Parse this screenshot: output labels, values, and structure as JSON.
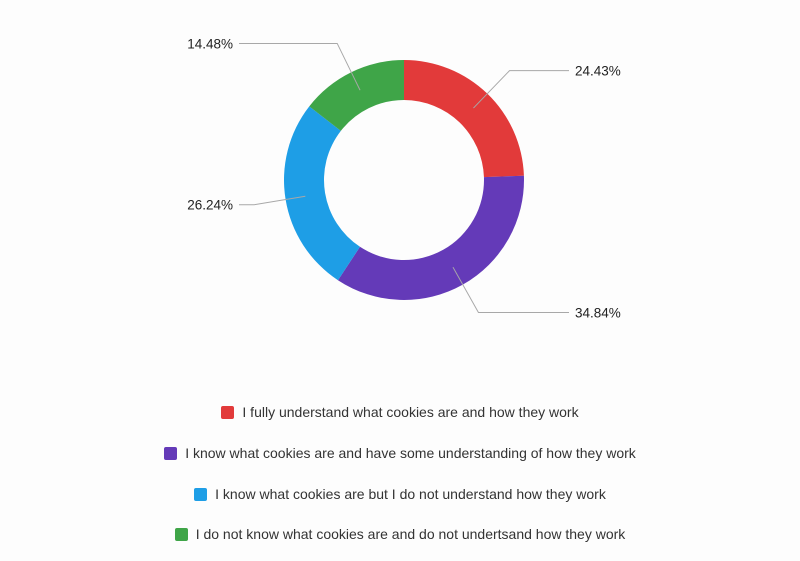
{
  "chart_data": {
    "type": "pie",
    "variant": "donut",
    "title": "",
    "slices": [
      {
        "label": "I fully understand what cookies are and how they work",
        "value": 24.43,
        "value_text": "24.43%",
        "color": "#e23a3a"
      },
      {
        "label": "I know what cookies are and have some understanding of how they work",
        "value": 34.84,
        "value_text": "34.84%",
        "color": "#643ab8"
      },
      {
        "label": "I know what cookies are but I do not understand how they work",
        "value": 26.24,
        "value_text": "26.24%",
        "color": "#1e9ee6"
      },
      {
        "label": "I do not know what cookies are and do not undertsand how they work",
        "value": 14.48,
        "value_text": "14.48%",
        "color": "#3fa548"
      }
    ],
    "legend_position": "bottom"
  },
  "legend": [
    {
      "label": "I fully understand what cookies are and how they work",
      "color": "#e23a3a"
    },
    {
      "label": "I know what cookies are and have some understanding of how they work",
      "color": "#643ab8"
    },
    {
      "label": "I know what cookies are but I do not understand how they work",
      "color": "#1e9ee6"
    },
    {
      "label": "I do not know what cookies are and do not undertsand how they work",
      "color": "#3fa548"
    }
  ]
}
